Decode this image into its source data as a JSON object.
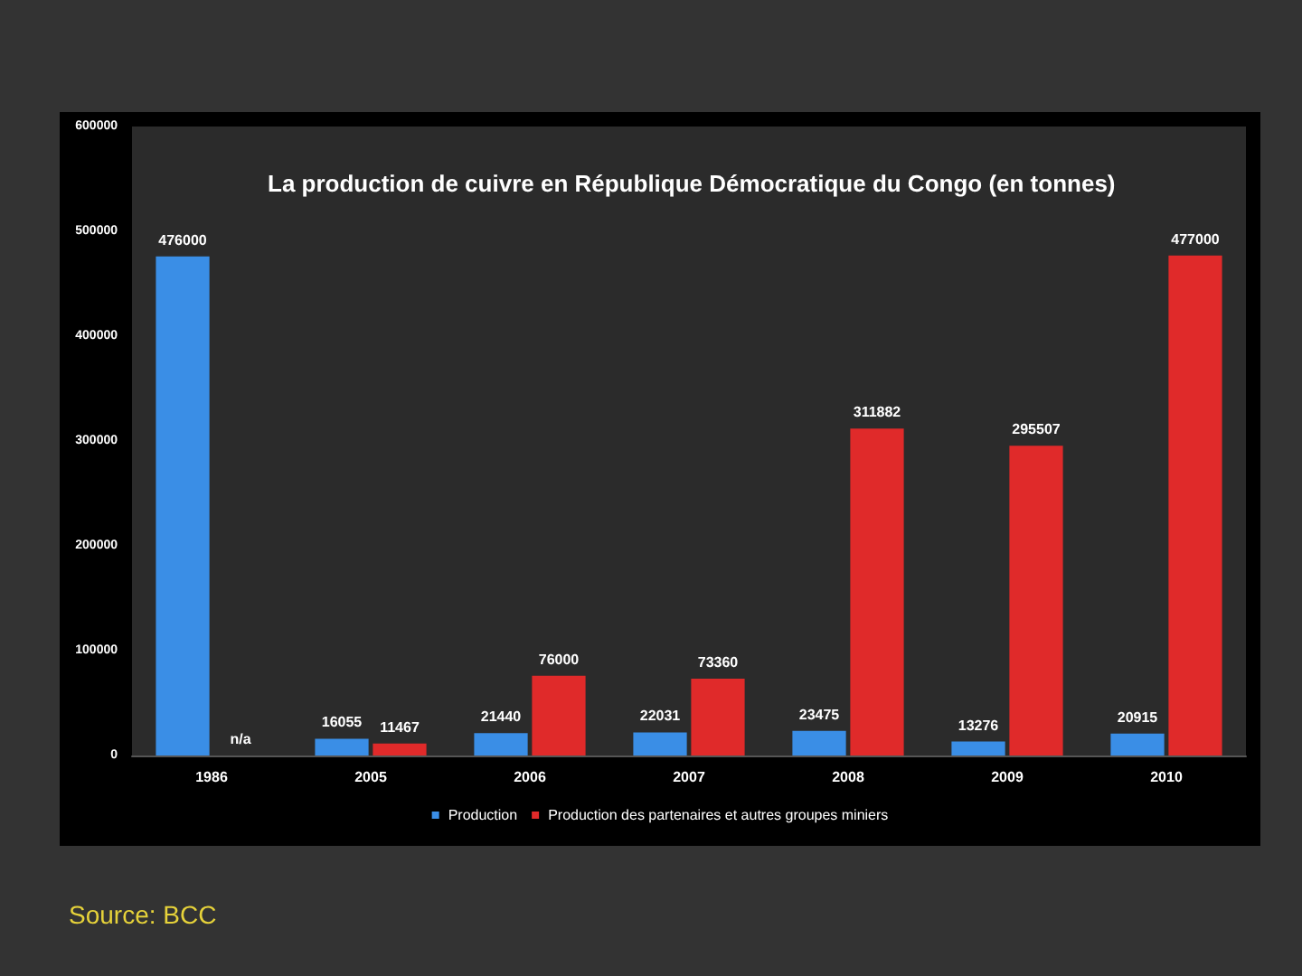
{
  "chart_data": {
    "type": "bar",
    "title": "La production de cuivre en République Démocratique du Congo (en tonnes)",
    "categories": [
      "1986",
      "2005",
      "2006",
      "2007",
      "2008",
      "2009",
      "2010"
    ],
    "series": [
      {
        "name": "Production",
        "color": "#3a8ee6",
        "values": [
          476000,
          16055,
          21440,
          22031,
          23475,
          13276,
          20915
        ],
        "value_labels": [
          "476000",
          "16055",
          "21440",
          "22031",
          "23475",
          "13276",
          "20915"
        ]
      },
      {
        "name": "Production des partenaires et autres groupes miniers",
        "color": "#e02a2a",
        "values": [
          null,
          11467,
          76000,
          73360,
          311882,
          295507,
          477000
        ],
        "value_labels": [
          "n/a",
          "11467",
          "76000",
          "73360",
          "311882",
          "295507",
          "477000"
        ]
      }
    ],
    "ylim": [
      0,
      600000
    ],
    "yticks": [
      0,
      100000,
      200000,
      300000,
      400000,
      500000,
      600000
    ],
    "grid": false,
    "legend": "bottom",
    "annotations": [
      "Source: BCC"
    ]
  }
}
